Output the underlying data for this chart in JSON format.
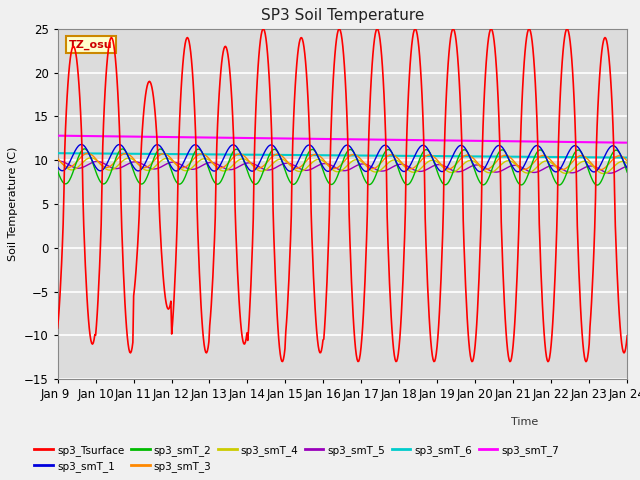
{
  "title": "SP3 Soil Temperature",
  "ylabel": "Soil Temperature (C)",
  "xlabel": "Time",
  "timezone_label": "TZ_osu",
  "ylim": [
    -15,
    25
  ],
  "yticks": [
    -15,
    -10,
    -5,
    0,
    5,
    10,
    15,
    20,
    25
  ],
  "xtick_labels": [
    "Jan 9 ",
    "Jan 10",
    "Jan 11",
    "Jan 12",
    "Jan 13",
    "Jan 14",
    "Jan 15",
    "Jan 16",
    "Jan 17",
    "Jan 18",
    "Jan 19",
    "Jan 20",
    "Jan 21",
    "Jan 22",
    "Jan 23",
    "Jan 24"
  ],
  "background_color": "#dcdcdc",
  "fig_background": "#f0f0f0",
  "grid_color": "#ffffff",
  "series_colors": {
    "sp3_Tsurface": "#ff0000",
    "sp3_smT_1": "#0000dd",
    "sp3_smT_2": "#00bb00",
    "sp3_smT_3": "#ff8800",
    "sp3_smT_4": "#cccc00",
    "sp3_smT_5": "#9900bb",
    "sp3_smT_6": "#00cccc",
    "sp3_smT_7": "#ff00ff"
  }
}
